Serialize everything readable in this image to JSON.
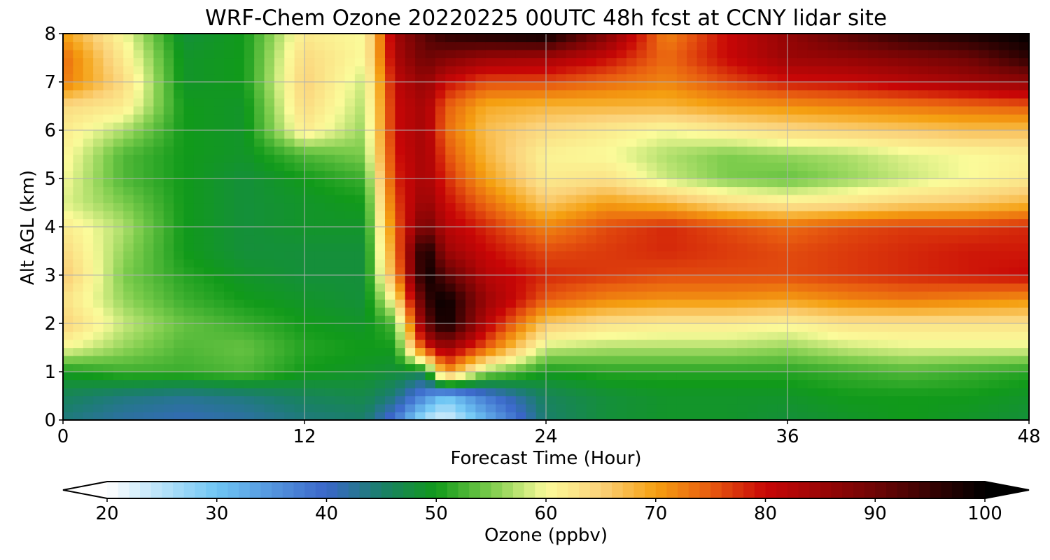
{
  "chart_data": {
    "type": "heatmap",
    "title": "WRF-Chem Ozone  20220225 00UTC 48h fcst at CCNY lidar site",
    "xlabel": "Forecast Time (Hour)",
    "ylabel": "Alt AGL (km)",
    "xlim": [
      0,
      48
    ],
    "ylim": [
      0,
      8
    ],
    "x_ticks": [
      "0",
      "12",
      "24",
      "36",
      "48"
    ],
    "y_ticks": [
      "0",
      "1",
      "2",
      "3",
      "4",
      "5",
      "6",
      "7",
      "8"
    ],
    "grid": true,
    "x": [
      0,
      3,
      6,
      9,
      12,
      15,
      16.5,
      18,
      19,
      21,
      24,
      27,
      30,
      33,
      36,
      39,
      42,
      45,
      48
    ],
    "y": [
      0,
      0.5,
      1,
      1.5,
      2,
      2.5,
      3,
      3.5,
      4,
      4.5,
      5,
      5.5,
      6,
      6.5,
      7,
      7.5,
      8
    ],
    "z": [
      [
        44,
        42,
        41,
        42,
        44,
        45,
        38,
        25,
        22,
        32,
        45,
        48,
        49,
        49,
        48,
        49,
        50,
        49,
        48
      ],
      [
        46,
        44,
        43,
        44,
        46,
        47,
        44,
        36,
        30,
        38,
        46,
        48,
        49,
        49,
        49,
        50,
        50,
        50,
        49
      ],
      [
        50,
        52,
        52,
        53,
        50,
        49,
        48,
        47,
        72,
        56,
        50,
        51,
        51,
        51,
        51,
        52,
        53,
        52,
        51
      ],
      [
        60,
        56,
        53,
        54,
        51,
        50,
        50,
        78,
        85,
        75,
        58,
        57,
        57,
        57,
        56,
        58,
        59,
        59,
        59
      ],
      [
        65,
        58,
        54,
        52,
        50,
        49,
        53,
        90,
        100,
        82,
        66,
        63,
        62,
        62,
        61,
        63,
        63,
        63,
        63
      ],
      [
        63,
        56,
        52,
        50,
        49,
        48,
        62,
        95,
        100,
        85,
        75,
        72,
        71,
        71,
        70,
        72,
        73,
        72,
        71
      ],
      [
        66,
        55,
        51,
        49,
        48,
        48,
        70,
        100,
        92,
        82,
        78,
        77,
        76,
        76,
        76,
        77,
        78,
        79,
        80
      ],
      [
        64,
        56,
        50,
        48,
        48,
        48,
        72,
        100,
        85,
        80,
        76,
        77,
        78,
        77,
        76,
        77,
        78,
        79,
        79
      ],
      [
        62,
        57,
        50,
        48,
        49,
        49,
        74,
        90,
        82,
        78,
        72,
        76,
        78,
        76,
        74,
        76,
        77,
        77,
        78
      ],
      [
        59,
        55,
        50,
        48,
        49,
        50,
        76,
        86,
        80,
        74,
        66,
        70,
        68,
        64,
        62,
        63,
        65,
        66,
        68
      ],
      [
        60,
        53,
        50,
        48,
        50,
        52,
        78,
        84,
        78,
        70,
        62,
        63,
        58,
        55,
        54,
        56,
        58,
        60,
        62
      ],
      [
        61,
        53,
        50,
        49,
        53,
        55,
        79,
        84,
        76,
        68,
        61,
        60,
        57,
        55,
        56,
        57,
        59,
        60,
        61
      ],
      [
        62,
        57,
        50,
        49,
        62,
        56,
        80,
        84,
        74,
        67,
        64,
        62,
        60,
        62,
        64,
        65,
        66,
        67,
        67
      ],
      [
        64,
        62,
        50,
        49,
        64,
        57,
        80,
        84,
        75,
        69,
        68,
        68,
        68,
        70,
        71,
        72,
        73,
        74,
        75
      ],
      [
        73,
        64,
        49,
        50,
        65,
        58,
        81,
        86,
        80,
        76,
        76,
        74,
        72,
        76,
        79,
        80,
        82,
        84,
        86
      ],
      [
        74,
        62,
        49,
        50,
        64,
        60,
        83,
        90,
        88,
        85,
        84,
        80,
        74,
        80,
        85,
        86,
        88,
        90,
        96
      ],
      [
        70,
        60,
        48,
        50,
        62,
        60,
        84,
        92,
        96,
        98,
        100,
        88,
        72,
        80,
        86,
        92,
        96,
        98,
        100
      ]
    ],
    "colorbar": {
      "label": "Ozone  (ppbv)",
      "ticks": [
        "20",
        "30",
        "40",
        "50",
        "60",
        "70",
        "80",
        "90",
        "100"
      ],
      "min": 20,
      "max": 100,
      "extend": "both"
    },
    "colormap": [
      [
        20,
        "#ffffff"
      ],
      [
        30,
        "#6fc6f4"
      ],
      [
        40,
        "#3a66c9"
      ],
      [
        45,
        "#1a7f6a"
      ],
      [
        50,
        "#119a1a"
      ],
      [
        55,
        "#7ccc4c"
      ],
      [
        60,
        "#fbfb9a"
      ],
      [
        65,
        "#fbd27a"
      ],
      [
        70,
        "#f5a011"
      ],
      [
        75,
        "#e85c10"
      ],
      [
        80,
        "#c80606"
      ],
      [
        90,
        "#6e0505"
      ],
      [
        100,
        "#000000"
      ]
    ]
  }
}
